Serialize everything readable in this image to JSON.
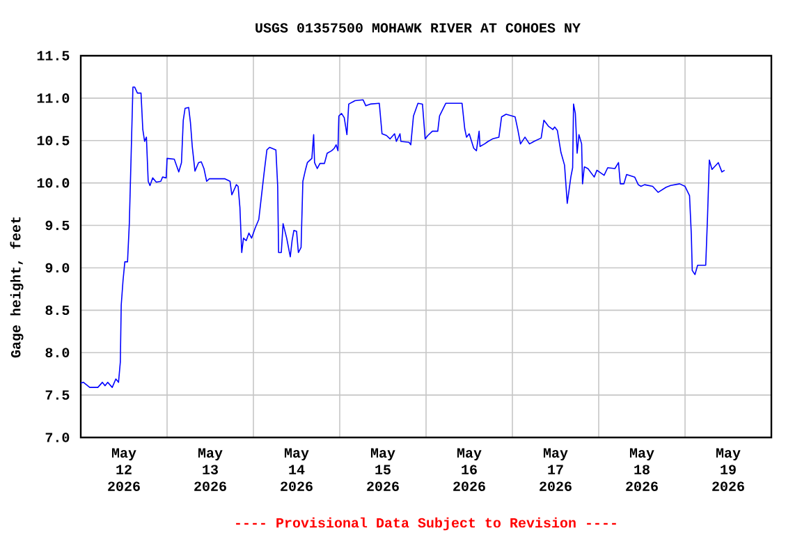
{
  "chart_data": {
    "type": "line",
    "title": "USGS 01357500 MOHAWK RIVER AT COHOES NY",
    "ylabel": "Gage height, feet",
    "annotations": [
      "---- Provisional Data Subject to Revision ----"
    ],
    "color": "#0000ff",
    "x": [
      "2026-05-12T00:00",
      "2026-05-12T00:45",
      "2026-05-12T02:30",
      "2026-05-12T04:45",
      "2026-05-12T06:00",
      "2026-05-12T06:45",
      "2026-05-12T07:30",
      "2026-05-12T08:45",
      "2026-05-12T09:45",
      "2026-05-12T10:30",
      "2026-05-12T11:00",
      "2026-05-12T11:15",
      "2026-05-12T11:45",
      "2026-05-12T12:15",
      "2026-05-12T13:00",
      "2026-05-12T13:30",
      "2026-05-12T14:00",
      "2026-05-12T14:30",
      "2026-05-12T15:00",
      "2026-05-12T15:45",
      "2026-05-12T16:45",
      "2026-05-12T17:15",
      "2026-05-12T17:45",
      "2026-05-12T18:15",
      "2026-05-12T18:45",
      "2026-05-12T19:15",
      "2026-05-12T20:00",
      "2026-05-12T21:00",
      "2026-05-12T22:15",
      "2026-05-12T22:45",
      "2026-05-12T23:45",
      "2026-05-13T00:00",
      "2026-05-13T02:00",
      "2026-05-13T03:15",
      "2026-05-13T04:00",
      "2026-05-13T04:30",
      "2026-05-13T05:00",
      "2026-05-13T06:00",
      "2026-05-13T06:30",
      "2026-05-13T07:00",
      "2026-05-13T07:45",
      "2026-05-13T08:45",
      "2026-05-13T09:30",
      "2026-05-13T10:15",
      "2026-05-13T11:00",
      "2026-05-13T11:45",
      "2026-05-13T16:00",
      "2026-05-13T17:30",
      "2026-05-13T18:00",
      "2026-05-13T18:45",
      "2026-05-13T19:15",
      "2026-05-13T19:45",
      "2026-05-13T20:15",
      "2026-05-13T20:45",
      "2026-05-13T21:15",
      "2026-05-13T22:00",
      "2026-05-13T22:45",
      "2026-05-13T23:30",
      "2026-05-14T00:30",
      "2026-05-14T01:30",
      "2026-05-14T02:15",
      "2026-05-14T03:00",
      "2026-05-14T03:45",
      "2026-05-14T04:30",
      "2026-05-14T06:15",
      "2026-05-14T06:45",
      "2026-05-14T07:00",
      "2026-05-14T07:45",
      "2026-05-14T08:15",
      "2026-05-14T09:15",
      "2026-05-14T10:15",
      "2026-05-14T10:45",
      "2026-05-14T11:15",
      "2026-05-14T12:00",
      "2026-05-14T12:30",
      "2026-05-14T13:15",
      "2026-05-14T13:45",
      "2026-05-14T14:30",
      "2026-05-14T15:00",
      "2026-05-14T16:15",
      "2026-05-14T16:45",
      "2026-05-14T17:00",
      "2026-05-14T17:45",
      "2026-05-14T18:30",
      "2026-05-14T19:45",
      "2026-05-14T20:30",
      "2026-05-14T21:45",
      "2026-05-14T22:30",
      "2026-05-14T23:00",
      "2026-05-14T23:30",
      "2026-05-14T23:45",
      "2026-05-15T00:30",
      "2026-05-15T01:15",
      "2026-05-15T02:00",
      "2026-05-15T02:30",
      "2026-05-15T04:15",
      "2026-05-15T06:30",
      "2026-05-15T07:15",
      "2026-05-15T08:30",
      "2026-05-15T11:00",
      "2026-05-15T11:45",
      "2026-05-15T13:00",
      "2026-05-15T14:00",
      "2026-05-15T15:15",
      "2026-05-15T15:45",
      "2026-05-15T16:45",
      "2026-05-15T17:00",
      "2026-05-15T19:15",
      "2026-05-15T19:45",
      "2026-05-15T20:30",
      "2026-05-15T21:45",
      "2026-05-15T23:00",
      "2026-05-15T23:45",
      "2026-05-16T00:30",
      "2026-05-16T01:45",
      "2026-05-16T03:15",
      "2026-05-16T03:45",
      "2026-05-16T05:30",
      "2026-05-16T10:00",
      "2026-05-16T10:45",
      "2026-05-16T11:15",
      "2026-05-16T12:00",
      "2026-05-16T13:15",
      "2026-05-16T14:00",
      "2026-05-16T14:45",
      "2026-05-16T15:00",
      "2026-05-16T16:15",
      "2026-05-16T17:15",
      "2026-05-16T18:30",
      "2026-05-16T20:15",
      "2026-05-16T21:00",
      "2026-05-16T22:15",
      "2026-05-17T00:45",
      "2026-05-17T01:30",
      "2026-05-17T02:15",
      "2026-05-17T03:30",
      "2026-05-17T04:45",
      "2026-05-17T06:00",
      "2026-05-17T08:00",
      "2026-05-17T08:45",
      "2026-05-17T10:00",
      "2026-05-17T11:15",
      "2026-05-17T11:45",
      "2026-05-17T12:30",
      "2026-05-17T13:30",
      "2026-05-17T14:30",
      "2026-05-17T15:00",
      "2026-05-17T15:15",
      "2026-05-17T16:15",
      "2026-05-17T16:45",
      "2026-05-17T17:00",
      "2026-05-17T17:30",
      "2026-05-17T18:00",
      "2026-05-17T18:30",
      "2026-05-17T19:15",
      "2026-05-17T19:30",
      "2026-05-17T20:00",
      "2026-05-17T21:00",
      "2026-05-17T22:45",
      "2026-05-17T23:30",
      "2026-05-18T01:30",
      "2026-05-18T02:30",
      "2026-05-18T04:30",
      "2026-05-18T05:30",
      "2026-05-18T06:00",
      "2026-05-18T07:00",
      "2026-05-18T07:45",
      "2026-05-18T10:00",
      "2026-05-18T11:00",
      "2026-05-18T11:45",
      "2026-05-18T12:45",
      "2026-05-18T15:00",
      "2026-05-18T16:30",
      "2026-05-18T18:45",
      "2026-05-18T20:00",
      "2026-05-18T22:30",
      "2026-05-19T00:00",
      "2026-05-19T01:15",
      "2026-05-19T01:45",
      "2026-05-19T02:00",
      "2026-05-19T02:45",
      "2026-05-19T03:30",
      "2026-05-19T05:45",
      "2026-05-19T06:15",
      "2026-05-19T06:45",
      "2026-05-19T07:30",
      "2026-05-19T09:15",
      "2026-05-19T10:15",
      "2026-05-19T11:00"
    ],
    "values": [
      7.64,
      7.65,
      7.59,
      7.59,
      7.65,
      7.61,
      7.65,
      7.59,
      7.69,
      7.65,
      7.89,
      8.56,
      8.85,
      9.07,
      9.07,
      9.52,
      10.32,
      11.13,
      11.13,
      11.06,
      11.06,
      10.63,
      10.49,
      10.54,
      10.02,
      9.97,
      10.06,
      10.01,
      10.02,
      10.07,
      10.06,
      10.29,
      10.28,
      10.13,
      10.24,
      10.74,
      10.88,
      10.89,
      10.71,
      10.43,
      10.14,
      10.24,
      10.25,
      10.17,
      10.02,
      10.05,
      10.05,
      10.02,
      9.86,
      9.93,
      9.98,
      9.96,
      9.71,
      9.18,
      9.35,
      9.32,
      9.41,
      9.35,
      9.47,
      9.57,
      9.85,
      10.13,
      10.39,
      10.42,
      10.39,
      9.96,
      9.18,
      9.18,
      9.52,
      9.35,
      9.13,
      9.32,
      9.44,
      9.43,
      9.18,
      9.24,
      10.02,
      10.16,
      10.24,
      10.29,
      10.57,
      10.24,
      10.17,
      10.23,
      10.23,
      10.35,
      10.38,
      10.41,
      10.45,
      10.38,
      10.79,
      10.82,
      10.77,
      10.57,
      10.93,
      10.97,
      10.98,
      10.91,
      10.93,
      10.94,
      10.58,
      10.56,
      10.52,
      10.58,
      10.49,
      10.58,
      10.49,
      10.48,
      10.45,
      10.79,
      10.94,
      10.93,
      10.52,
      10.56,
      10.61,
      10.61,
      10.79,
      10.94,
      10.94,
      10.64,
      10.54,
      10.58,
      10.41,
      10.38,
      10.61,
      10.43,
      10.46,
      10.49,
      10.52,
      10.54,
      10.78,
      10.81,
      10.78,
      10.63,
      10.46,
      10.54,
      10.46,
      10.49,
      10.53,
      10.74,
      10.67,
      10.63,
      10.66,
      10.62,
      10.36,
      10.21,
      9.91,
      9.76,
      10.07,
      10.18,
      10.93,
      10.82,
      10.35,
      10.57,
      10.46,
      9.99,
      10.19,
      10.17,
      10.07,
      10.15,
      10.09,
      10.18,
      10.17,
      10.24,
      9.99,
      9.99,
      10.1,
      10.07,
      9.98,
      9.96,
      9.98,
      9.96,
      9.89,
      9.95,
      9.97,
      9.99,
      9.96,
      9.85,
      9.39,
      8.97,
      8.92,
      9.03,
      9.03,
      9.6,
      10.27,
      10.16,
      10.24,
      10.13,
      10.15
    ],
    "xlim": [
      "2026-05-12T00:00",
      "2026-05-20T00:00"
    ],
    "ylim": [
      7.0,
      11.5
    ],
    "xticks": [
      {
        "value": "2026-05-12T12:00",
        "label": "May 12 2026"
      },
      {
        "value": "2026-05-13T00:00",
        "label": null
      },
      {
        "value": "2026-05-13T12:00",
        "label": "May 13 2026"
      },
      {
        "value": "2026-05-14T00:00",
        "label": null
      },
      {
        "value": "2026-05-14T12:00",
        "label": "May 14 2026"
      },
      {
        "value": "2026-05-15T00:00",
        "label": null
      },
      {
        "value": "2026-05-15T12:00",
        "label": "May 15 2026"
      },
      {
        "value": "2026-05-16T00:00",
        "label": null
      },
      {
        "value": "2026-05-16T12:00",
        "label": "May 16 2026"
      },
      {
        "value": "2026-05-17T00:00",
        "label": null
      },
      {
        "value": "2026-05-17T12:00",
        "label": "May 17 2026"
      },
      {
        "value": "2026-05-18T00:00",
        "label": null
      },
      {
        "value": "2026-05-18T12:00",
        "label": "May 18 2026"
      },
      {
        "value": "2026-05-19T00:00",
        "label": null
      },
      {
        "value": "2026-05-19T12:00",
        "label": "May 19 2026"
      }
    ],
    "yticks": [
      {
        "value": 7.0,
        "label": "7.0"
      },
      7.5,
      {
        "value": 8.0,
        "label": "8.0"
      },
      8.5,
      {
        "value": 9.0,
        "label": "9.0"
      },
      9.5,
      {
        "value": 10.0,
        "label": "10.0"
      },
      10.5,
      {
        "value": 11.0,
        "label": "11.0"
      },
      11.5
    ],
    "grid": true
  }
}
